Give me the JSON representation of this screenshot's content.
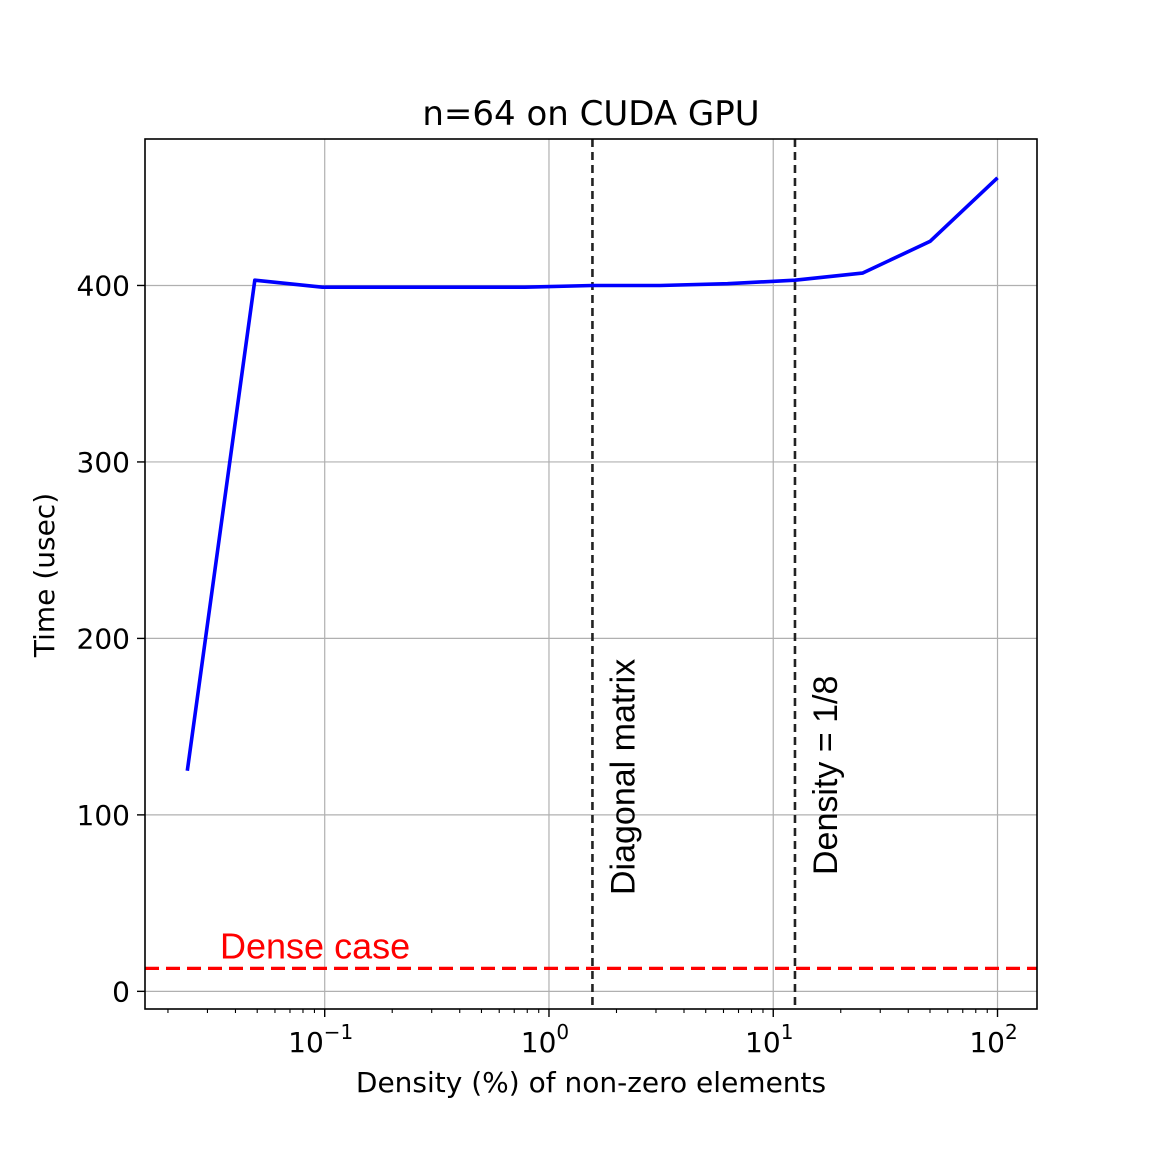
{
  "chart_data": {
    "type": "line",
    "title": "n=64 on CUDA GPU",
    "xlabel": "Density (%) of non-zero elements",
    "ylabel": "Time (usec)",
    "xscale": "log",
    "xlim": [
      0.0158,
      150
    ],
    "ylim": [
      -10,
      483
    ],
    "grid": true,
    "x_ticks": [
      {
        "value": 0.1,
        "base": "10",
        "exp": "−1"
      },
      {
        "value": 1,
        "base": "10",
        "exp": "0"
      },
      {
        "value": 10,
        "base": "10",
        "exp": "1"
      },
      {
        "value": 100,
        "base": "10",
        "exp": "2"
      }
    ],
    "y_ticks": [
      0,
      100,
      200,
      300,
      400
    ],
    "series": [
      {
        "color": "#0000ff",
        "x": [
          0.0244,
          0.0488,
          0.0977,
          0.195,
          0.391,
          0.781,
          1.5625,
          3.125,
          6.25,
          12.5,
          25,
          50,
          100
        ],
        "y": [
          125,
          403,
          399,
          399,
          399,
          399,
          400,
          400,
          401,
          403,
          407,
          425,
          461
        ]
      }
    ],
    "vlines": [
      {
        "x": 1.5625,
        "label": "Diagonal matrix",
        "color": "#222222"
      },
      {
        "x": 12.5,
        "label": "Density = 1/8",
        "color": "#222222"
      }
    ],
    "hlines": [
      {
        "y": 13,
        "label": "Dense case",
        "color": "#ff0000"
      }
    ]
  }
}
